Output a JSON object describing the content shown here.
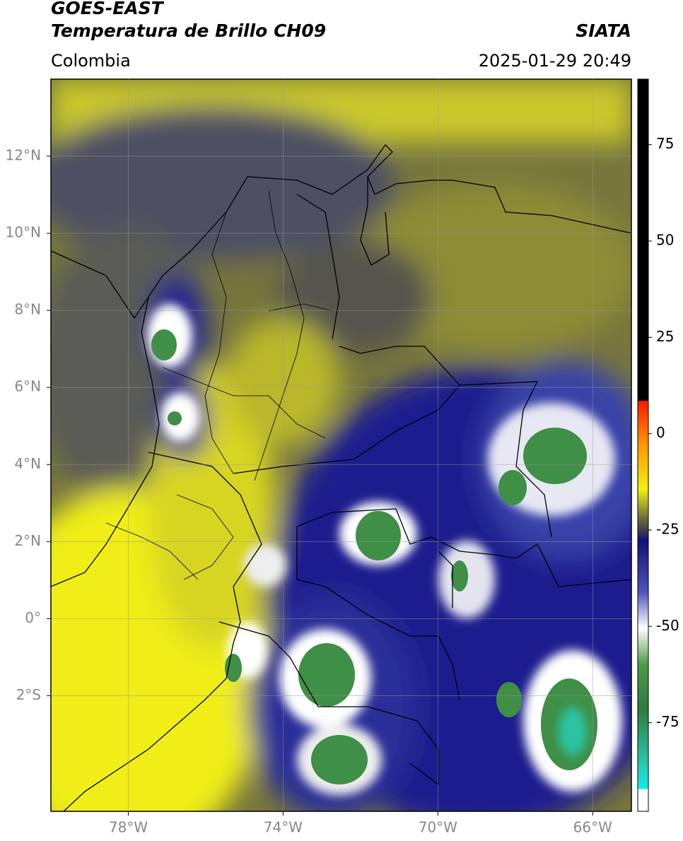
{
  "header": {
    "title": "GOES-EAST",
    "subtitle": "Temperatura de Brillo CH09",
    "region": "Colombia",
    "source": "SIATA",
    "timestamp": "2025-01-29 20:49"
  },
  "map": {
    "lonlim": [
      -80,
      -65
    ],
    "latlim": [
      -5,
      14
    ],
    "lon_ticks": [
      {
        "value": -78,
        "label": "78°W"
      },
      {
        "value": -74,
        "label": "74°W"
      },
      {
        "value": -70,
        "label": "70°W"
      },
      {
        "value": -66,
        "label": "66°W"
      }
    ],
    "lat_ticks": [
      {
        "value": 12,
        "label": "12°N"
      },
      {
        "value": 10,
        "label": "10°N"
      },
      {
        "value": 8,
        "label": "8°N"
      },
      {
        "value": 6,
        "label": "6°N"
      },
      {
        "value": 4,
        "label": "4°N"
      },
      {
        "value": 2,
        "label": "2°N"
      },
      {
        "value": 0,
        "label": "0°"
      },
      {
        "value": -2,
        "label": "2°S"
      }
    ],
    "grid": true
  },
  "colorbar": {
    "lim": [
      -98,
      92
    ],
    "ticks": [
      75,
      50,
      25,
      0,
      -25,
      -50,
      -75
    ]
  }
}
